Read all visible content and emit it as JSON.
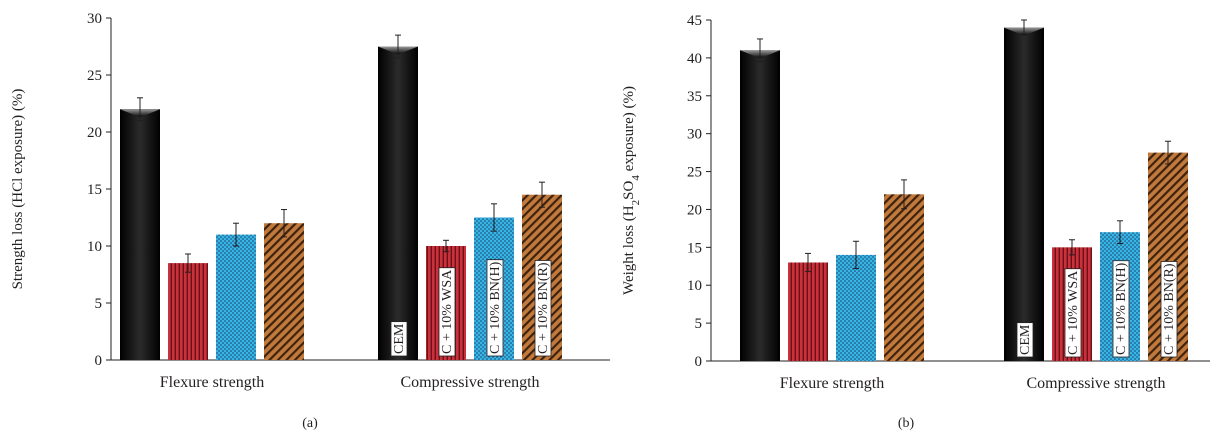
{
  "chart_data": [
    {
      "type": "bar",
      "panel_label": "(a)",
      "ylabel": "Strength loss (HCl exposure) (%)",
      "ylim": [
        0,
        30
      ],
      "yticks": [
        0,
        5,
        10,
        15,
        20,
        25,
        30
      ],
      "categories": [
        "Flexure strength",
        "Compressive strength"
      ],
      "series": [
        {
          "name": "CEM",
          "values": [
            22,
            27.5
          ],
          "errors": [
            1.0,
            1.0
          ],
          "pattern": "black-gradient"
        },
        {
          "name": "C + 10% WSA",
          "values": [
            8.5,
            10
          ],
          "errors": [
            0.8,
            0.5
          ],
          "pattern": "red-vertical-lines"
        },
        {
          "name": "C + 10% BN(H)",
          "values": [
            11,
            12.5
          ],
          "errors": [
            1.0,
            1.2
          ],
          "pattern": "blue-dots"
        },
        {
          "name": "C + 10% BN(R)",
          "values": [
            12,
            14.5
          ],
          "errors": [
            1.2,
            1.1
          ],
          "pattern": "brown-diagonal-lines"
        }
      ],
      "legend": "vertical labels on compressive strength bars",
      "grid": false
    },
    {
      "type": "bar",
      "panel_label": "(b)",
      "ylabel_parts": [
        "Weight loss (H",
        "2",
        "SO",
        "4",
        " exposure) (%)"
      ],
      "ylim": [
        0,
        45
      ],
      "yticks": [
        0,
        5,
        10,
        15,
        20,
        25,
        30,
        35,
        40,
        45
      ],
      "categories": [
        "Flexure strength",
        "Compressive strength"
      ],
      "series": [
        {
          "name": "CEM",
          "values": [
            41,
            44
          ],
          "errors": [
            1.5,
            1.0
          ],
          "pattern": "black-gradient"
        },
        {
          "name": "C + 10% WSA",
          "values": [
            13,
            15
          ],
          "errors": [
            1.2,
            1.0
          ],
          "pattern": "red-vertical-lines"
        },
        {
          "name": "C + 10% BN(H)",
          "values": [
            14,
            17
          ],
          "errors": [
            1.8,
            1.5
          ],
          "pattern": "blue-dots"
        },
        {
          "name": "C + 10% BN(R)",
          "values": [
            22,
            27.5
          ],
          "errors": [
            1.9,
            1.5
          ],
          "pattern": "brown-diagonal-lines"
        }
      ],
      "legend": "vertical labels on compressive strength bars",
      "grid": false
    }
  ]
}
